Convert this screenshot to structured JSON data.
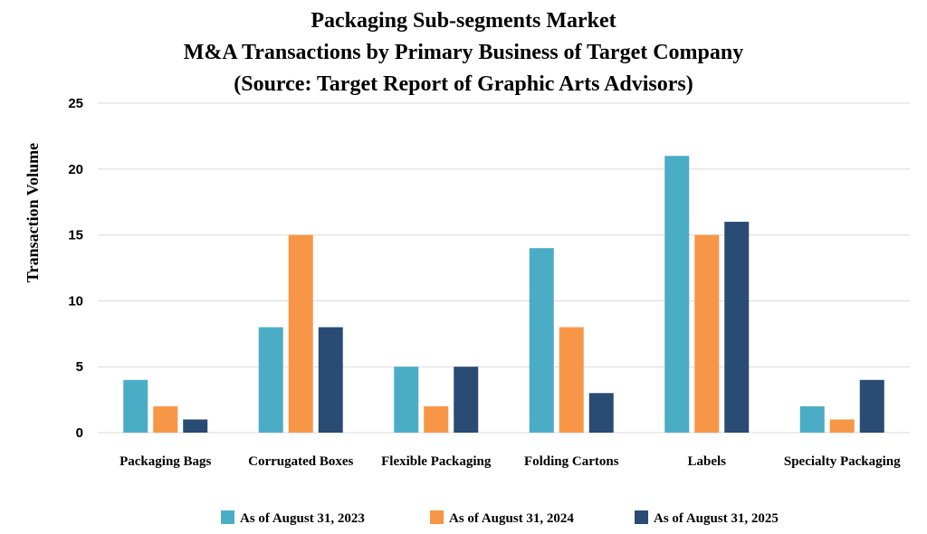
{
  "chart_data": {
    "type": "bar",
    "title_lines": [
      "Packaging Sub-segments Market",
      "M&A Transactions by Primary Business of Target Company",
      "(Source: Target Report of Graphic Arts Advisors)"
    ],
    "xlabel": "",
    "ylabel": "Transaction Volume",
    "ylim": [
      0,
      25
    ],
    "yticks": [
      0,
      5,
      10,
      15,
      20,
      25
    ],
    "grid": true,
    "legend_position": "bottom",
    "categories": [
      "Packaging Bags",
      "Corrugated Boxes",
      "Flexible Packaging",
      "Folding Cartons",
      "Labels",
      "Specialty Packaging"
    ],
    "series": [
      {
        "name": "As of August 31, 2023",
        "color": "#4BACC6",
        "values": [
          4,
          8,
          5,
          14,
          21,
          2
        ]
      },
      {
        "name": "As of August 31, 2024",
        "color": "#F79646",
        "values": [
          2,
          15,
          2,
          8,
          15,
          1
        ]
      },
      {
        "name": "As of August 31, 2025",
        "color": "#2A4B73",
        "values": [
          1,
          8,
          5,
          3,
          16,
          4
        ]
      }
    ]
  }
}
